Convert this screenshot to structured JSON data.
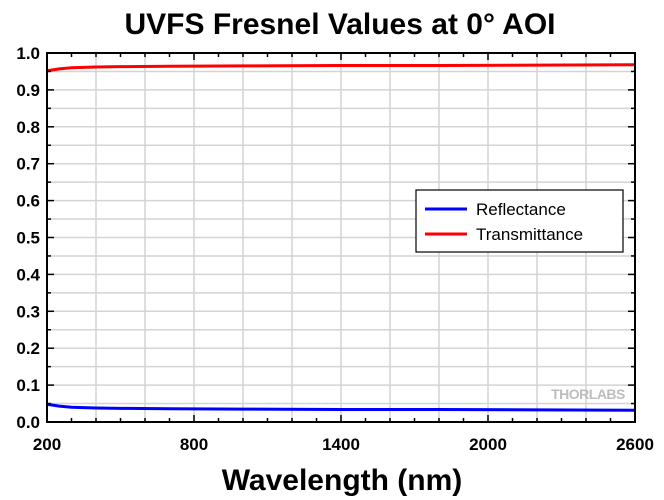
{
  "chart_data": {
    "type": "line",
    "title": "UVFS Fresnel Values at 0° AOI",
    "xlabel": "Wavelength (nm)",
    "ylabel": "",
    "xlim": [
      200,
      2600
    ],
    "ylim": [
      0.0,
      1.0
    ],
    "x_ticks": [
      200,
      800,
      1400,
      2000,
      2600
    ],
    "y_ticks": [
      0.0,
      0.1,
      0.2,
      0.3,
      0.4,
      0.5,
      0.6,
      0.7,
      0.8,
      0.9,
      1.0
    ],
    "y_tick_labels": [
      "0.0",
      "0.1",
      "0.2",
      "0.3",
      "0.4",
      "0.5",
      "0.6",
      "0.7",
      "0.8",
      "0.9",
      "1.0"
    ],
    "x_minor_step": 100,
    "y_minor_step": 0.05,
    "grid": true,
    "legend_position": "center-right",
    "watermark": "THORLABS",
    "series": [
      {
        "name": "Reflectance",
        "color": "#0000ff",
        "x": [
          200,
          250,
          300,
          400,
          500,
          700,
          1000,
          1400,
          1800,
          2200,
          2600
        ],
        "y": [
          0.048,
          0.043,
          0.04,
          0.038,
          0.037,
          0.036,
          0.035,
          0.034,
          0.034,
          0.033,
          0.032
        ]
      },
      {
        "name": "Transmittance",
        "color": "#ff0000",
        "x": [
          200,
          250,
          300,
          400,
          500,
          700,
          1000,
          1400,
          1800,
          2200,
          2600
        ],
        "y": [
          0.952,
          0.957,
          0.96,
          0.962,
          0.963,
          0.964,
          0.965,
          0.966,
          0.966,
          0.967,
          0.968
        ]
      }
    ]
  }
}
